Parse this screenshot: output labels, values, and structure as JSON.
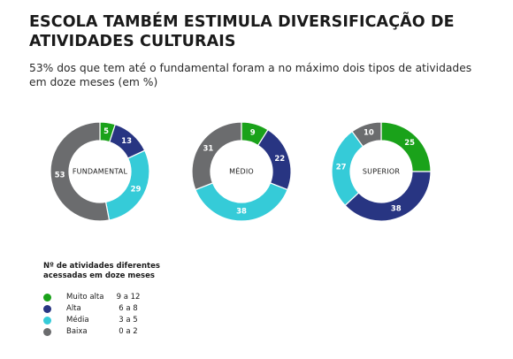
{
  "title": "ESCOLA TAMBÉM ESTIMULA DIVERSIFICAÇÃO DE ATIVIDADES CULTURAIS",
  "subtitle": "53% dos que tem até o fundamental foram a no máximo dois tipos de atividades em doze meses (em %)",
  "colors": {
    "muito_alta": "#1aa21a",
    "alta": "#283582",
    "media": "#35cbd8",
    "baixa": "#6b6c6e"
  },
  "legend": {
    "title": "Nº de atividades diferentes acessadas em doze meses",
    "items": [
      {
        "label": "Muito alta",
        "range": "9 a 12",
        "color": "#1aa21a"
      },
      {
        "label": "Alta",
        "range": "6 a 8",
        "color": "#283582"
      },
      {
        "label": "Média",
        "range": "3 a 5",
        "color": "#35cbd8"
      },
      {
        "label": "Baixa",
        "range": "0 a 2",
        "color": "#6b6c6e"
      }
    ]
  },
  "chart_data": [
    {
      "type": "pie",
      "donut": true,
      "center_label": "FUNDAMENTAL",
      "categories": [
        "Muito alta",
        "Alta",
        "Média",
        "Baixa"
      ],
      "values": [
        5,
        13,
        29,
        53
      ],
      "colors": [
        "#1aa21a",
        "#283582",
        "#35cbd8",
        "#6b6c6e"
      ]
    },
    {
      "type": "pie",
      "donut": true,
      "center_label": "MÉDIO",
      "categories": [
        "Muito alta",
        "Alta",
        "Média",
        "Baixa"
      ],
      "values": [
        9,
        22,
        38,
        31
      ],
      "colors": [
        "#1aa21a",
        "#283582",
        "#35cbd8",
        "#6b6c6e"
      ]
    },
    {
      "type": "pie",
      "donut": true,
      "center_label": "SUPERIOR",
      "categories": [
        "Muito alta",
        "Alta",
        "Média",
        "Baixa"
      ],
      "values": [
        25,
        38,
        27,
        10
      ],
      "colors": [
        "#1aa21a",
        "#283582",
        "#35cbd8",
        "#6b6c6e"
      ]
    }
  ]
}
